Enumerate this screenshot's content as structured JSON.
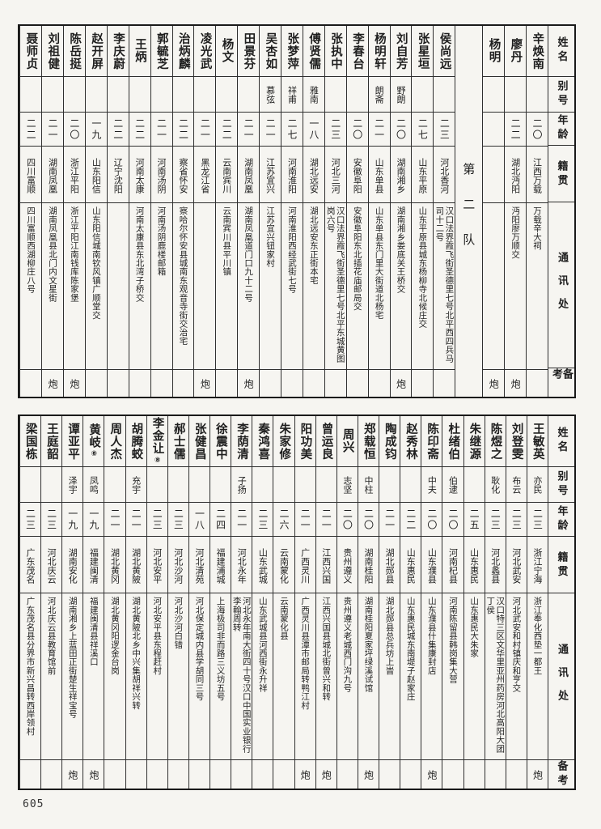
{
  "page": {
    "number": "605"
  },
  "row_headers": {
    "name": "姓名",
    "alias": "别号",
    "age": "年龄",
    "native": "籍贯",
    "address": "通讯处",
    "remark": "备考"
  },
  "sections": [
    {
      "id": "top",
      "columns": [
        {
          "name": "辛焕南",
          "alias": "",
          "age": "二〇",
          "native": "江西万载",
          "address": "万载辛大祠",
          "remark": ""
        },
        {
          "name": "廖丹",
          "alias": "",
          "age": "二二",
          "native": "湖北沔阳",
          "address": "沔阳廖万顺交",
          "remark": "炮"
        },
        {
          "name": "杨明",
          "alias": "",
          "age": "",
          "native": "",
          "address": "",
          "remark": "炮"
        },
        {
          "divider": true,
          "label": "第二队"
        },
        {
          "name": "侯尚远",
          "alias": "",
          "age": "二三",
          "native": "河北香河",
          "address": "汉口法界霞飞街圣德里七号北平西四兵马司十二号",
          "remark": ""
        },
        {
          "name": "张星垣",
          "alias": "",
          "age": "二七",
          "native": "山东平原",
          "address": "山东平原县城东杨柳寺北候庄交",
          "remark": ""
        },
        {
          "name": "刘自芳",
          "alias": "野朗",
          "age": "二〇",
          "native": "湖南湘乡",
          "address": "湖南湘乡娄底关王桥交",
          "remark": "炮"
        },
        {
          "name": "杨明轩",
          "alias": "朗斋",
          "age": "二一",
          "native": "山东单县",
          "address": "山东单县东门里大街道北杨宅",
          "remark": ""
        },
        {
          "name": "李春台",
          "alias": "",
          "age": "二〇",
          "native": "安徽阜阳",
          "address": "安徽阜阳东北插花庙邮局交",
          "remark": ""
        },
        {
          "name": "张执中",
          "alias": "",
          "age": "二三",
          "native": "河北三河",
          "address": "汉口法界霞飞街圣德里七号北平东城黄图岗六号",
          "remark": ""
        },
        {
          "name": "傅贤儒",
          "alias": "雅南",
          "age": "一八",
          "native": "湖北远安",
          "address": "湖北远安东正街本宅",
          "remark": ""
        },
        {
          "name": "张梦萍",
          "alias": "祥甫",
          "age": "二七",
          "native": "河南淮阳",
          "address": "河南淮阳西经武街七号",
          "remark": ""
        },
        {
          "name": "吴杏如",
          "alias": "慕弦",
          "age": "二一",
          "native": "江苏宜兴",
          "address": "江苏宜兴钮家村",
          "remark": ""
        },
        {
          "name": "田景芬",
          "alias": "",
          "age": "二一",
          "native": "湖南凤凰",
          "address": "湖南凤凰道门口九十二号",
          "remark": "炮"
        },
        {
          "name": "杨文",
          "alias": "",
          "age": "二二",
          "native": "云南宾川",
          "address": "云南宾川县平川镇",
          "remark": ""
        },
        {
          "name": "凌光武",
          "alias": "",
          "age": "二一",
          "native": "黑龙江省",
          "address": "",
          "remark": "炮"
        },
        {
          "name": "治炳麟",
          "alias": "",
          "age": "二二",
          "native": "察省怀安",
          "address": "察哈尔怀安县城南东观音寺街交治宅",
          "remark": ""
        },
        {
          "name": "郭毓芝",
          "alias": "",
          "age": "二一",
          "native": "河南汤阴",
          "address": "河南汤阴鹿楼邮箱",
          "remark": ""
        },
        {
          "name": "王炳",
          "alias": "",
          "age": "二二",
          "native": "河南太康",
          "address": "河南太康县东北湾子桥交",
          "remark": ""
        },
        {
          "name": "李庆蔚",
          "alias": "",
          "age": "二二",
          "native": "辽宁沈阳",
          "address": "",
          "remark": ""
        },
        {
          "name": "赵开屏",
          "alias": "",
          "age": "一九",
          "native": "山东阳信",
          "address": "山东阳信城南钦风镇广顺堂交",
          "remark": ""
        },
        {
          "name": "陈岳挺",
          "alias": "",
          "age": "二〇",
          "native": "浙江平阳",
          "address": "浙江平阳江南钱库陈家堡",
          "remark": "炮"
        },
        {
          "name": "刘祖健",
          "alias": "",
          "age": "二一",
          "native": "湖南凤凰",
          "address": "湖南凤凰县北门内文星街",
          "remark": "炮"
        },
        {
          "name": "聂师贞",
          "alias": "",
          "age": "二二",
          "native": "四川富顺",
          "address": "四川富顺西湖柳庄八号",
          "remark": ""
        }
      ]
    },
    {
      "id": "bottom",
      "columns": [
        {
          "name": "王敏英",
          "alias": "亦民",
          "age": "二三",
          "native": "浙江宁海",
          "address": "浙江奉化西垫一都王",
          "remark": "炮"
        },
        {
          "name": "刘登雯",
          "alias": "布云",
          "age": "二三",
          "native": "河北武安",
          "address": "河北武安和村镇庆和亨交",
          "remark": ""
        },
        {
          "name": "陈煜之",
          "alias": "耿化",
          "age": "二三",
          "native": "河北蠡县",
          "address": "汉口特三区文华里亚州药房河北高阳大团丁侯",
          "remark": ""
        },
        {
          "name": "朱继源",
          "alias": "",
          "age": "二五",
          "native": "山东惠民",
          "address": "山东惠民大朱家",
          "remark": ""
        },
        {
          "name": "杜绪伯",
          "alias": "伯逮",
          "age": "二〇",
          "native": "河南杞县",
          "address": "河南陈留县韩岗集大营",
          "remark": ""
        },
        {
          "name": "陈印斋",
          "alias": "中夫",
          "age": "二〇",
          "native": "山东濮县",
          "address": "山东濮县什集康封店",
          "remark": "炮"
        },
        {
          "name": "赵秀林",
          "alias": "",
          "age": "二二",
          "native": "山东惠民",
          "address": "山东惠民城东南堤子赵家庄",
          "remark": ""
        },
        {
          "name": "陶成钧",
          "alias": "",
          "age": "二一",
          "native": "湖北郧县",
          "address": "湖北郧县总兵坊上旹",
          "remark": ""
        },
        {
          "name": "郑载恒",
          "alias": "中柱",
          "age": "二〇",
          "native": "湖南桂阳",
          "address": "湖南桂阳夏家坪绿溪试馆",
          "remark": "炮"
        },
        {
          "name": "周兴",
          "alias": "志坚",
          "age": "二〇",
          "native": "贵州遵义",
          "address": "贵州遵义老城西门沟九号",
          "remark": ""
        },
        {
          "name": "曾运良",
          "alias": "",
          "age": "二一",
          "native": "江西兴国",
          "address": "江西兴国县城北街曾兴和转",
          "remark": "炮"
        },
        {
          "name": "阳功美",
          "alias": "",
          "age": "二一",
          "native": "广西灵川",
          "address": "广西灵川县潭市邮局转鸭江村",
          "remark": "炮"
        },
        {
          "name": "朱家修",
          "alias": "",
          "age": "二六",
          "native": "云南蒙化",
          "address": "云南蒙化县",
          "remark": ""
        },
        {
          "name": "秦鸿喜",
          "alias": "",
          "age": "二三",
          "native": "山东武城",
          "address": "山东武城县河西街永升祥",
          "remark": ""
        },
        {
          "name": "李荫清",
          "alias": "子扬",
          "age": "二一",
          "native": "河北永年",
          "address": "河北永年南大街四十号汉口中国实业银行李翰周转",
          "remark": ""
        },
        {
          "name": "徐震中",
          "alias": "",
          "age": "二四",
          "native": "福建浦城",
          "address": "上海极司非而路三义坊五号",
          "remark": ""
        },
        {
          "name": "张健昌",
          "alias": "",
          "age": "一八",
          "native": "河北清苑",
          "address": "河北保定城内县学胡同三号",
          "remark": ""
        },
        {
          "name": "郝士儒",
          "alias": "",
          "age": "二三",
          "native": "河北沙河",
          "address": "河北沙河白错",
          "remark": ""
        },
        {
          "name": "李金让",
          "mark": "⑧",
          "alias": "",
          "age": "二三",
          "native": "河北安平",
          "address": "河北安平县东程赶村",
          "remark": ""
        },
        {
          "name": "胡腾蛟",
          "alias": "充宇",
          "age": "二一",
          "native": "湖北黄陂",
          "address": "湖北黄陂北乡中兴集胡祥兴转",
          "remark": ""
        },
        {
          "name": "周人杰",
          "alias": "",
          "age": "二一",
          "native": "湖北黄冈",
          "address": "湖北黄冈阳逻金台岗",
          "remark": ""
        },
        {
          "name": "黄岐",
          "mark": "⑧",
          "alias": "凤鸣",
          "age": "一九",
          "native": "福建闽清",
          "address": "福建闽清县祥溪口",
          "remark": "炮"
        },
        {
          "name": "谭亚平",
          "alias": "泽宇",
          "age": "一九",
          "native": "湖南安化",
          "address": "湖南湘乡上蓝田正街楚生祥宝号",
          "remark": "炮"
        },
        {
          "name": "王庭韶",
          "alias": "",
          "age": "二三",
          "native": "河北庆云",
          "address": "河北庆云县教育馆前",
          "remark": ""
        },
        {
          "name": "梁国栋",
          "alias": "",
          "age": "二三",
          "native": "广东茂名",
          "address": "广东茂名县分界市新兴昌转西岸领村",
          "remark": ""
        }
      ]
    }
  ]
}
